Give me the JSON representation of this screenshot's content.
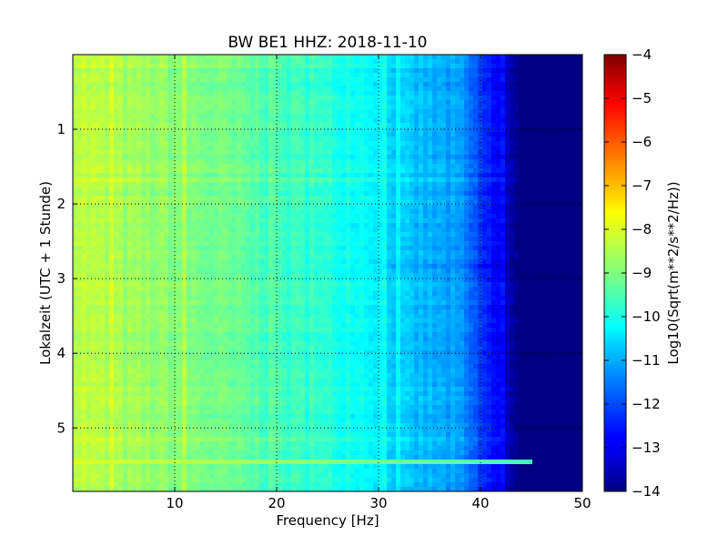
{
  "chart_data": {
    "type": "heatmap",
    "title": "BW BE1 HHZ: 2018-11-10",
    "xlabel": "Frequency [Hz]",
    "ylabel": "Lokalzeit (UTC + 1 Stunde)",
    "xlim": [
      0,
      50
    ],
    "ylim": [
      5.85,
      0
    ],
    "x_ticks": [
      10,
      20,
      30,
      40,
      50
    ],
    "y_ticks": [
      1,
      2,
      3,
      4,
      5
    ],
    "grid": true,
    "colormap": "jet",
    "colorbar": {
      "label": "Log10(Sqrt(m**2/s**2/Hz))",
      "range": [
        -14,
        -4
      ],
      "ticks": [
        -4,
        -5,
        -6,
        -7,
        -8,
        -9,
        -10,
        -11,
        -12,
        -13,
        -14
      ]
    },
    "frequency_profile": {
      "freq": [
        0,
        5,
        10,
        15,
        20,
        25,
        28,
        30,
        32,
        35,
        38,
        40,
        41,
        42,
        43,
        44,
        45,
        50
      ],
      "log_amplitude": [
        -8.3,
        -8.7,
        -8.9,
        -9.2,
        -9.6,
        -9.9,
        -10.1,
        -10.3,
        -10.8,
        -11.0,
        -11.3,
        -12.2,
        -12.6,
        -13.0,
        -13.5,
        -14,
        -14,
        -14
      ]
    },
    "features": [
      {
        "time": 5.43,
        "type": "horizontal_band",
        "log_amplitude": -8.1,
        "max_freq": 45
      }
    ]
  }
}
